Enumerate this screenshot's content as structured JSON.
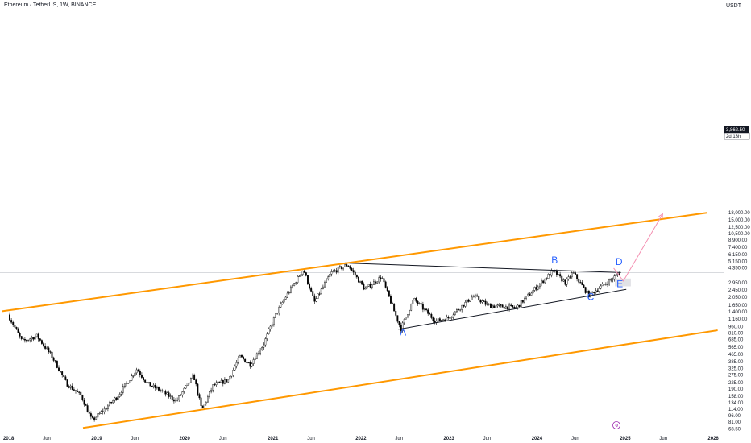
{
  "header": {
    "title": "Ethereum / TetherUS, 1W, BINANCE",
    "currency": "USDT"
  },
  "price_badge": {
    "price": "3,862.50",
    "countdown": "2d 13h"
  },
  "chart_data": {
    "type": "candlestick",
    "title": "Ethereum / TetherUS, 1W, BINANCE",
    "y_scale": "log",
    "y_unit": "USDT",
    "x_ticks": [
      "2018",
      "Jun",
      "2019",
      "Jun",
      "2020",
      "Jun",
      "2021",
      "Jun",
      "2022",
      "Jun",
      "2023",
      "Jun",
      "2024",
      "Jun",
      "2025",
      "Jun",
      "2026"
    ],
    "y_ticks": [
      "18,000.00",
      "15,000.00",
      "12,500.00",
      "10,500.00",
      "8,900.00",
      "7,400.00",
      "6,150.00",
      "5,150.00",
      "4,350.00",
      "2,950.00",
      "2,450.00",
      "2,050.00",
      "1,650.00",
      "1,400.00",
      "1,160.00",
      "960.00",
      "810.00",
      "685.00",
      "565.00",
      "465.00",
      "385.00",
      "325.00",
      "275.00",
      "225.00",
      "190.00",
      "158.00",
      "134.00",
      "114.00",
      "96.00",
      "81.00",
      "68.50"
    ],
    "y_tick_values": [
      18000,
      15000,
      12500,
      10500,
      8900,
      7400,
      6150,
      5150,
      4350,
      2950,
      2450,
      2050,
      1650,
      1400,
      1160,
      960,
      810,
      685,
      565,
      465,
      385,
      325,
      275,
      225,
      190,
      158,
      134,
      114,
      96,
      81,
      68.5
    ],
    "last_price": 3862.5,
    "price_path": [
      [
        "2018-01-01",
        1300
      ],
      [
        "2018-03-01",
        650
      ],
      [
        "2018-05-01",
        750
      ],
      [
        "2018-07-01",
        450
      ],
      [
        "2018-09-01",
        220
      ],
      [
        "2018-11-01",
        160
      ],
      [
        "2018-12-15",
        85
      ],
      [
        "2019-02-01",
        110
      ],
      [
        "2019-04-01",
        160
      ],
      [
        "2019-06-20",
        320
      ],
      [
        "2019-08-01",
        220
      ],
      [
        "2019-10-01",
        180
      ],
      [
        "2019-12-01",
        140
      ],
      [
        "2020-02-10",
        270
      ],
      [
        "2020-03-15",
        110
      ],
      [
        "2020-05-01",
        210
      ],
      [
        "2020-07-01",
        240
      ],
      [
        "2020-08-20",
        440
      ],
      [
        "2020-10-01",
        360
      ],
      [
        "2020-11-25",
        600
      ],
      [
        "2021-01-15",
        1300
      ],
      [
        "2021-02-20",
        1950
      ],
      [
        "2021-05-10",
        4200
      ],
      [
        "2021-06-25",
        1800
      ],
      [
        "2021-09-01",
        3800
      ],
      [
        "2021-11-10",
        4750
      ],
      [
        "2022-01-20",
        2500
      ],
      [
        "2022-03-30",
        3450
      ],
      [
        "2022-06-18",
        900
      ],
      [
        "2022-08-10",
        1950
      ],
      [
        "2022-11-10",
        1100
      ],
      [
        "2023-01-01",
        1200
      ],
      [
        "2023-04-15",
        2100
      ],
      [
        "2023-06-15",
        1650
      ],
      [
        "2023-10-10",
        1550
      ],
      [
        "2023-12-10",
        2300
      ],
      [
        "2024-03-10",
        4000
      ],
      [
        "2024-05-01",
        2950
      ],
      [
        "2024-06-01",
        3850
      ],
      [
        "2024-08-05",
        2150
      ],
      [
        "2024-11-10",
        3250
      ],
      [
        "2024-12-10",
        3862.5
      ]
    ],
    "annotations": {
      "wave_labels": [
        {
          "text": "A",
          "x": "2022-06-20",
          "y": 760
        },
        {
          "text": "B",
          "x": "2024-03-10",
          "y": 4900
        },
        {
          "text": "C",
          "x": "2024-08-05",
          "y": 1900
        },
        {
          "text": "D",
          "x": "2024-12-01",
          "y": 4700
        },
        {
          "text": "E",
          "x": "2024-12-05",
          "y": 2650
        }
      ],
      "channel_lines": [
        {
          "name": "upper",
          "from": [
            "2017-12-01",
            1420
          ],
          "to": [
            "2025-12-01",
            18000
          ]
        },
        {
          "name": "lower",
          "from": [
            "2018-11-01",
            70
          ],
          "to": [
            "2026-01-15",
            870
          ]
        }
      ],
      "triangle_lines": [
        {
          "name": "resistance",
          "from": [
            "2021-11-10",
            4900
          ],
          "to": [
            "2024-12-10",
            3850
          ]
        },
        {
          "name": "support",
          "from": [
            "2022-06-01",
            890
          ],
          "to": [
            "2025-01-01",
            2500
          ]
        }
      ],
      "projection_arrow": {
        "from": [
          "2024-12-20",
          3100
        ],
        "to": [
          "2025-06-01",
          17500
        ]
      },
      "target_zone": {
        "x_from": "2024-11-15",
        "x_to": "2025-01-20",
        "y_from": 2700,
        "y_to": 3300
      }
    }
  }
}
